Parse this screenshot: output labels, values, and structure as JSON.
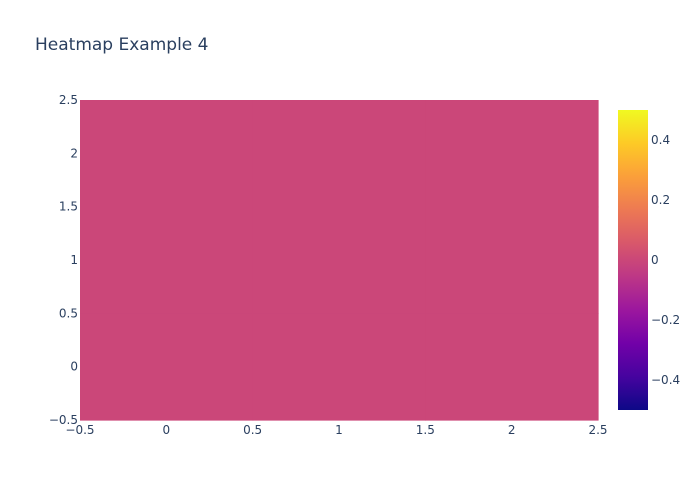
{
  "chart_data": {
    "type": "heatmap",
    "title": "Heatmap Example 4",
    "xlabel": "",
    "ylabel": "",
    "x": [
      0,
      1,
      2
    ],
    "y": [
      0,
      1,
      2
    ],
    "z": [
      [
        0,
        0,
        0
      ],
      [
        0,
        0,
        0
      ],
      [
        0,
        0,
        0
      ]
    ],
    "xlim": [
      -0.5,
      2.5
    ],
    "ylim": [
      -0.5,
      2.5
    ],
    "x_ticks": [
      "−0.5",
      "0",
      "0.5",
      "1",
      "1.5",
      "2",
      "2.5"
    ],
    "x_tick_values": [
      -0.5,
      0,
      0.5,
      1,
      1.5,
      2,
      2.5
    ],
    "y_ticks": [
      "−0.5",
      "0",
      "0.5",
      "1",
      "1.5",
      "2",
      "2.5"
    ],
    "y_tick_values": [
      -0.5,
      0,
      0.5,
      1,
      1.5,
      2,
      2.5
    ],
    "colorscale_name": "plasma",
    "colorscale": [
      "#0d0887",
      "#46039f",
      "#7201a8",
      "#9c179e",
      "#bd3786",
      "#d8576b",
      "#ed7953",
      "#fb9f3a",
      "#fdca26",
      "#f0f921"
    ],
    "colorbar": {
      "range": [
        -0.5,
        0.5
      ],
      "ticks": [
        "−0.4",
        "−0.2",
        "0",
        "0.2",
        "0.4"
      ],
      "tick_values": [
        -0.4,
        -0.2,
        0,
        0.2,
        0.4
      ]
    },
    "grid": false,
    "background": "#ffffff"
  }
}
